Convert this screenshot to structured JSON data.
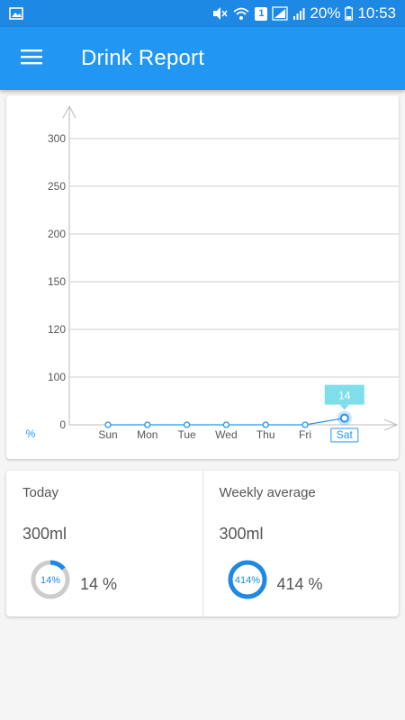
{
  "status_bar": {
    "battery": "20%",
    "time": "10:53",
    "sim_badge": "1"
  },
  "app_bar": {
    "title": "Drink Report"
  },
  "chart_data": {
    "type": "line",
    "categories": [
      "Sun",
      "Mon",
      "Tue",
      "Wed",
      "Thu",
      "Fri",
      "Sat"
    ],
    "values": [
      0,
      0,
      0,
      0,
      0,
      0,
      14
    ],
    "y_ticks": [
      "0",
      "100",
      "120",
      "150",
      "200",
      "250",
      "300"
    ],
    "y_unit_label": "%",
    "highlighted_category": "Sat",
    "tooltip_label": "14",
    "grid": true,
    "line_color": "#2196f3",
    "tooltip_color": "#80deea"
  },
  "stats": {
    "today": {
      "label": "Today",
      "value": "300ml",
      "ring_text": "14%",
      "percent_text": "14 %",
      "fraction": 0.14
    },
    "weekly": {
      "label": "Weekly average",
      "value": "300ml",
      "ring_text": "414%",
      "percent_text": "414 %",
      "fraction": 1.0
    }
  },
  "colors": {
    "primary": "#2196f3",
    "primary_dark": "#1e88e5",
    "ring_track": "#cccccc"
  }
}
